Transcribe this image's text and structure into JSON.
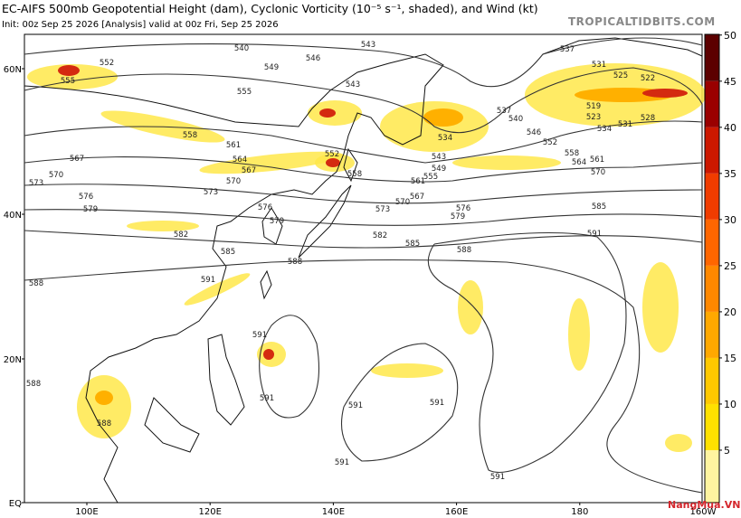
{
  "title": "EC-AIFS 500mb Geopotential Height (dam), Cyclonic Vorticity (10⁻⁵ s⁻¹, shaded), and Wind (kt)",
  "subtitle": "Init: 00z Sep 25 2026   [Analysis]   valid at 00z Fri, Sep 25 2026",
  "watermark": "TROPICALTIDBITS.COM",
  "logo": "NangMua.VN",
  "lat_labels": [
    "60N",
    "40N",
    "20N",
    "EQ"
  ],
  "lon_labels": [
    "100E",
    "120E",
    "140E",
    "160E",
    "180",
    "160W"
  ],
  "colorbar": {
    "ticks": [
      5,
      10,
      15,
      20,
      25,
      30,
      35,
      40,
      45,
      50
    ],
    "colors": [
      "#fff4a0",
      "#ffe100",
      "#ffc800",
      "#ffa800",
      "#ff8800",
      "#ff6600",
      "#f03c00",
      "#cc1800",
      "#9a0000",
      "#5c0000"
    ]
  },
  "contour_labels": [
    "552",
    "555",
    "540",
    "549",
    "546",
    "543",
    "543",
    "555",
    "558",
    "561",
    "564",
    "567",
    "567",
    "570",
    "573",
    "570",
    "573",
    "576",
    "579",
    "576",
    "579",
    "582",
    "585",
    "588",
    "582",
    "585",
    "588",
    "573",
    "570",
    "567",
    "561",
    "555",
    "549",
    "543",
    "534",
    "552",
    "558",
    "537",
    "540",
    "546",
    "552",
    "558",
    "561",
    "564",
    "570",
    "579",
    "576",
    "585",
    "591",
    "537",
    "531",
    "525",
    "522",
    "519",
    "523",
    "528",
    "534",
    "531",
    "588",
    "591",
    "588",
    "588",
    "591",
    "591",
    "591",
    "591",
    "591",
    "591"
  ]
}
